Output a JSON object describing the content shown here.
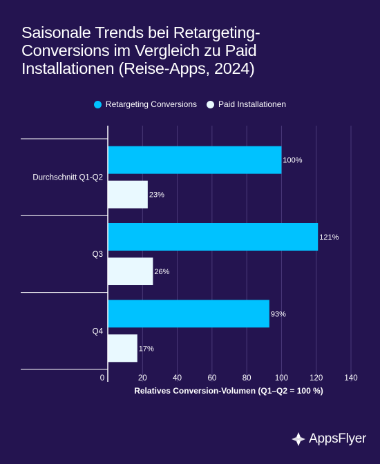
{
  "title_lines": [
    "Saisonale Trends bei Retargeting-",
    "Conversions im Vergleich zu Paid",
    "Installationen (Reise-Apps, 2024)"
  ],
  "colors": {
    "background": "#241450",
    "retargeting": "#00c2ff",
    "paid": "#e9f9ff",
    "grid": "#4a3a7a"
  },
  "brand": {
    "name": "AppsFlyer",
    "icon": "appsflyer-logo-icon"
  },
  "chart_data": {
    "type": "bar",
    "orientation": "horizontal",
    "categories": [
      "Durchschnitt Q1-Q2",
      "Q3",
      "Q4"
    ],
    "series": [
      {
        "name": "Retargeting Conversions",
        "values": [
          100,
          121,
          93
        ],
        "labels": [
          "100%",
          "121%",
          "93%"
        ]
      },
      {
        "name": "Paid Installationen",
        "values": [
          23,
          26,
          17
        ],
        "labels": [
          "23%",
          "26%",
          "17%"
        ]
      }
    ],
    "xlabel": "Relatives Conversion-Volumen (Q1–Q2 = 100 %)",
    "xlim": [
      0,
      140
    ],
    "xticks": [
      0,
      20,
      40,
      60,
      80,
      100,
      120,
      140
    ],
    "grid": true,
    "legend_position": "top"
  }
}
